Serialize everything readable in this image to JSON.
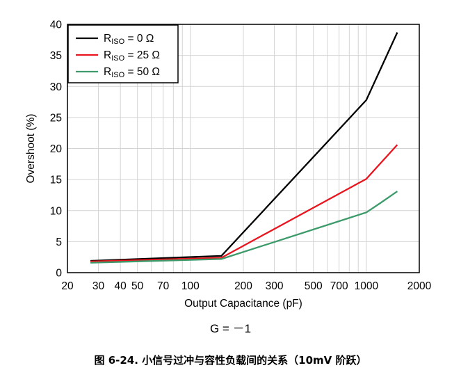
{
  "chart_data": {
    "type": "line",
    "xlabel": "Output Capacitance (pF)",
    "ylabel": "Overshoot (%)",
    "x_scale": "log",
    "xlim": [
      20,
      2000
    ],
    "ylim": [
      0,
      40
    ],
    "x_ticks": [
      20,
      30,
      40,
      50,
      70,
      100,
      200,
      300,
      500,
      700,
      1000,
      2000
    ],
    "x_tick_labels": [
      "20",
      "30",
      "40",
      "50",
      "70",
      "100",
      "200",
      "300",
      "500",
      "700",
      "1000",
      "2000"
    ],
    "y_ticks": [
      0,
      5,
      10,
      15,
      20,
      25,
      30,
      35,
      40
    ],
    "y_tick_labels": [
      "0",
      "5",
      "10",
      "15",
      "20",
      "25",
      "30",
      "35",
      "40"
    ],
    "grid": true,
    "legend_position": "top-left",
    "series": [
      {
        "name": "R_ISO = 0 Ω",
        "label_main": "R",
        "label_sub": "ISO",
        "label_rest": " = 0 Ω",
        "color": "#000000",
        "x": [
          27,
          150,
          1000,
          1500
        ],
        "y": [
          1.9,
          2.7,
          27.8,
          38.7
        ]
      },
      {
        "name": "R_ISO = 25 Ω",
        "label_main": "R",
        "label_sub": "ISO",
        "label_rest": " = 25 Ω",
        "color": "#e8141e",
        "x": [
          27,
          150,
          1000,
          1500
        ],
        "y": [
          1.8,
          2.4,
          15.1,
          20.6
        ]
      },
      {
        "name": "R_ISO = 50 Ω",
        "label_main": "R",
        "label_sub": "ISO",
        "label_rest": " = 50 Ω",
        "color": "#3d9a6a",
        "x": [
          27,
          150,
          1000,
          1200,
          1500
        ],
        "y": [
          1.6,
          2.2,
          9.7,
          11.2,
          13.1
        ]
      }
    ]
  },
  "condition_label": "G = －1",
  "caption": "图 6-24. 小信号过冲与容性负载间的关系（10mV 阶跃）"
}
